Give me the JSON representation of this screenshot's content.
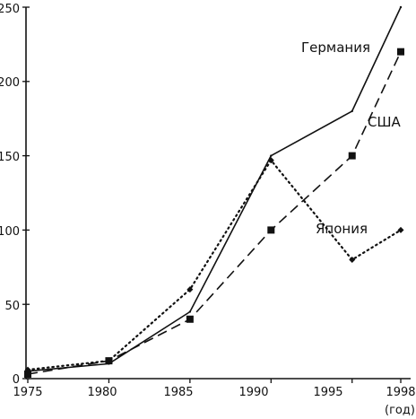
{
  "chart_data": {
    "type": "line",
    "x": [
      1975,
      1980,
      1985,
      1990,
      1995,
      1998
    ],
    "x_tick_labels": [
      "1975",
      "1980",
      "1985",
      "1990",
      "1995",
      "1998"
    ],
    "x_unit_label": "(год)",
    "y_ticks": [
      "0",
      "50",
      "100",
      "150",
      "200",
      "250"
    ],
    "ylim": [
      0,
      250
    ],
    "grid": false,
    "series": [
      {
        "name": "Германия",
        "style": "solid",
        "marker": "none",
        "values": [
          5,
          10,
          45,
          150,
          180,
          250
        ]
      },
      {
        "name": "США",
        "style": "dashed",
        "marker": "square",
        "values": [
          3,
          12,
          40,
          100,
          150,
          220
        ]
      },
      {
        "name": "Япония",
        "style": "dotted",
        "marker": "diamond",
        "values": [
          6,
          12,
          60,
          147,
          80,
          100
        ]
      }
    ],
    "colors": {
      "line": "#111111",
      "background": "#ffffff"
    }
  }
}
